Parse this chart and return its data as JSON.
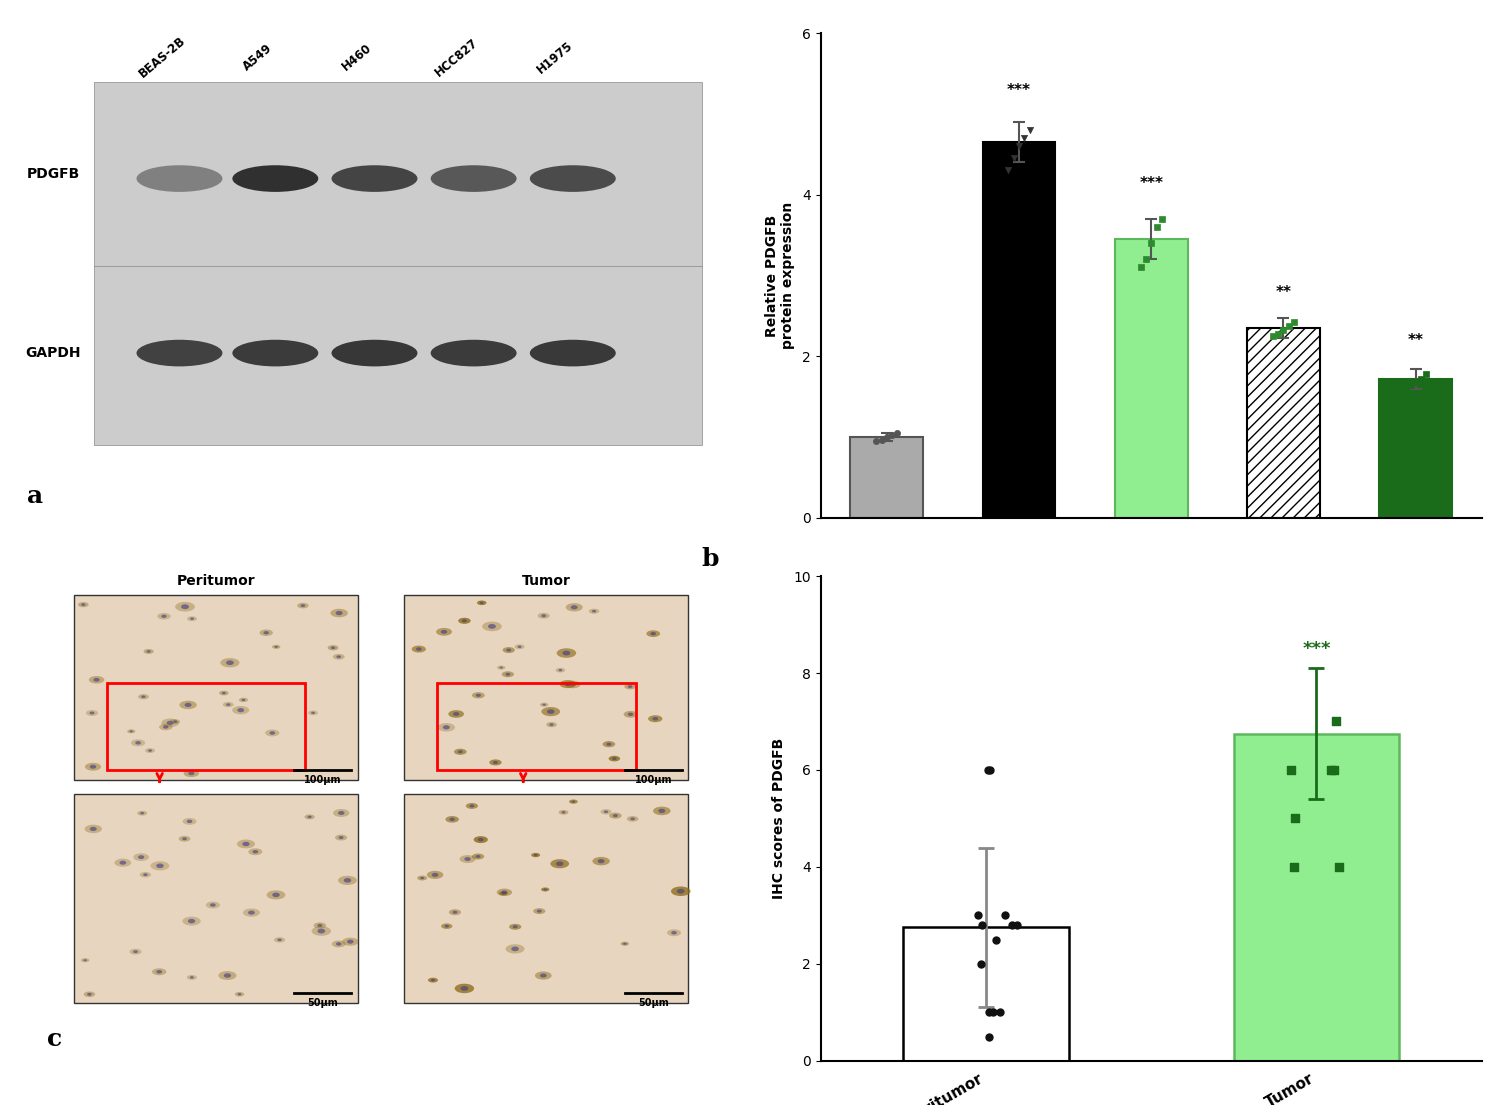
{
  "panel_b": {
    "categories": [
      "BEAS-2B",
      "A549",
      "H460",
      "HCC827",
      "H1975"
    ],
    "values": [
      1.0,
      4.65,
      3.45,
      2.35,
      1.72
    ],
    "errors": [
      0.05,
      0.25,
      0.25,
      0.12,
      0.12
    ],
    "bar_colors": [
      "#aaaaaa",
      "#000000",
      "#90EE90",
      "#ffffff",
      "#1a6b1a"
    ],
    "bar_edge_colors": [
      "#555555",
      "#000000",
      "#5db85d",
      "#000000",
      "#1a6b1a"
    ],
    "bar_hatches": [
      null,
      null,
      null,
      "///",
      null
    ],
    "ylabel": "Relative PDGFB\nprotein expression",
    "ylim": [
      0,
      6
    ],
    "yticks": [
      0,
      2,
      4,
      6
    ],
    "significance": [
      "",
      "***",
      "***",
      "**",
      "**"
    ],
    "sig_y": [
      null,
      5.2,
      4.05,
      2.7,
      2.1
    ],
    "dot_data": {
      "BEAS-2B": [
        0.95,
        0.97,
        1.0,
        1.02,
        1.05
      ],
      "A549": [
        4.3,
        4.45,
        4.6,
        4.7,
        4.8
      ],
      "H460": [
        3.1,
        3.2,
        3.4,
        3.6,
        3.7
      ],
      "HCC827": [
        2.25,
        2.28,
        2.32,
        2.38,
        2.42
      ],
      "H1975": [
        1.6,
        1.65,
        1.68,
        1.72,
        1.78
      ]
    },
    "legend_labels": [
      "BEAS-2B",
      "A549",
      "H460",
      "HCC827",
      "H1975"
    ],
    "legend_colors": [
      "#aaaaaa",
      "#000000",
      "#90EE90",
      "#ffffff",
      "#1a6b1a"
    ],
    "legend_edge_colors": [
      "#555555",
      "#000000",
      "#5db85d",
      "#000000",
      "#1a6b1a"
    ],
    "legend_hatches": [
      null,
      null,
      null,
      "///",
      null
    ]
  },
  "panel_d": {
    "categories": [
      "Peritumor",
      "Tumor"
    ],
    "values": [
      2.75,
      6.75
    ],
    "errors": [
      1.65,
      1.35
    ],
    "bar_colors": [
      "#ffffff",
      "#90EE90"
    ],
    "bar_edge_colors": [
      "#000000",
      "#5db85d"
    ],
    "ylabel": "IHC scores of PDGFB",
    "ylim": [
      0,
      10
    ],
    "yticks": [
      0,
      2,
      4,
      6,
      8,
      10
    ],
    "significance": [
      "",
      "***"
    ],
    "sig_y": [
      null,
      8.3
    ],
    "peritumor_dots": [
      0.5,
      1.0,
      1.0,
      1.0,
      2.0,
      2.5,
      2.8,
      2.8,
      2.8,
      3.0,
      3.0,
      6.0,
      6.0
    ],
    "tumor_dots": [
      4.0,
      4.0,
      5.0,
      6.0,
      6.0,
      6.0,
      7.0
    ],
    "error_color_peritumor": "#888888",
    "error_color_tumor": "#1a6b1a"
  },
  "wb_bands": {
    "cell_lines": [
      "BEAS-2B",
      "A549",
      "H460",
      "HCC827",
      "H1975"
    ],
    "pdgfb_intensities": [
      0.3,
      0.9,
      0.75,
      0.6,
      0.7
    ],
    "gapdh_intensities": [
      0.8,
      0.85,
      0.9,
      0.85,
      0.88
    ],
    "bg_color": "#d8d8d8",
    "band_color_pdgfb": "#1a1a1a",
    "band_color_gapdh": "#333333"
  },
  "colors": {
    "dark_green": "#1a6b1a",
    "light_green": "#90EE90",
    "white": "#ffffff",
    "black": "#000000",
    "gray": "#aaaaaa"
  }
}
